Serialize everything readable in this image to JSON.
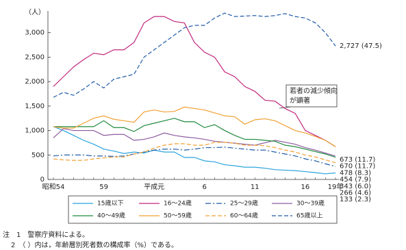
{
  "chart_data": {
    "type": "line",
    "y_unit_label": "（人）",
    "categories": [
      "昭和54",
      null,
      null,
      null,
      null,
      "59",
      null,
      null,
      null,
      null,
      "平成元",
      null,
      null,
      null,
      null,
      "6",
      null,
      null,
      null,
      null,
      "11",
      null,
      null,
      null,
      null,
      "16",
      null,
      null,
      "19年"
    ],
    "ylim": [
      0,
      3500
    ],
    "yticks": [
      0,
      500,
      {
        "value": 1000,
        "label": "1,000"
      },
      {
        "value": 1500,
        "label": "1,500"
      },
      {
        "value": 2000,
        "label": "2,000"
      },
      {
        "value": 2500,
        "label": "2,500"
      },
      {
        "value": 3000,
        "label": "3,000"
      }
    ],
    "series": [
      {
        "name": "15歳以下",
        "color": "#29a3dc",
        "style": "solid",
        "values": [
          1080,
          1000,
          900,
          800,
          720,
          620,
          580,
          530,
          560,
          540,
          600,
          560,
          560,
          450,
          450,
          380,
          360,
          300,
          280,
          250,
          250,
          230,
          200,
          190,
          180,
          160,
          140,
          115,
          133
        ],
        "value_labels": [
          null,
          null,
          null,
          null,
          null,
          null,
          null,
          null,
          null,
          null,
          null,
          null,
          null,
          null,
          null,
          null,
          null,
          null,
          null,
          null,
          null,
          null,
          null,
          null,
          null,
          null,
          null,
          null,
          "133 (2.3)"
        ]
      },
      {
        "name": "16～24歳",
        "color": "#c0267c",
        "style": "solid",
        "values": [
          1900,
          2100,
          2300,
          2450,
          2580,
          2550,
          2650,
          2650,
          2800,
          3200,
          3330,
          3330,
          3230,
          3200,
          2800,
          2600,
          2500,
          2200,
          2100,
          1900,
          1800,
          1620,
          1600,
          1450,
          1350,
          1000,
          900,
          800,
          670
        ],
        "value_labels": [
          null,
          null,
          null,
          null,
          null,
          null,
          null,
          null,
          null,
          null,
          null,
          null,
          null,
          null,
          null,
          null,
          null,
          null,
          null,
          null,
          null,
          null,
          null,
          null,
          null,
          null,
          null,
          null,
          "670 (11.7)"
        ]
      },
      {
        "name": "25～29歳",
        "color": "#1e5aa8",
        "style": "dashdot",
        "values": [
          480,
          500,
          500,
          500,
          480,
          480,
          470,
          480,
          520,
          560,
          600,
          620,
          620,
          600,
          620,
          650,
          650,
          660,
          640,
          620,
          600,
          600,
          560,
          520,
          480,
          420,
          380,
          320,
          266
        ],
        "value_labels": [
          null,
          null,
          null,
          null,
          null,
          null,
          null,
          null,
          null,
          null,
          null,
          null,
          null,
          null,
          null,
          null,
          null,
          null,
          null,
          null,
          null,
          null,
          null,
          null,
          null,
          null,
          null,
          null,
          "266 (4.6)"
        ]
      },
      {
        "name": "30～39歳",
        "color": "#8c5aa0",
        "style": "solid",
        "values": [
          850,
          1040,
          1000,
          1000,
          1000,
          900,
          920,
          920,
          800,
          820,
          870,
          950,
          900,
          870,
          850,
          820,
          780,
          760,
          740,
          720,
          700,
          750,
          800,
          760,
          720,
          650,
          600,
          540,
          478
        ],
        "value_labels": [
          null,
          null,
          null,
          null,
          null,
          null,
          null,
          null,
          null,
          null,
          null,
          null,
          null,
          null,
          null,
          null,
          null,
          null,
          null,
          null,
          null,
          null,
          null,
          null,
          null,
          null,
          null,
          null,
          "478 (8.3)"
        ]
      },
      {
        "name": "40～49歳",
        "color": "#1e8a3c",
        "style": "solid",
        "values": [
          1080,
          1080,
          1080,
          1080,
          1080,
          1200,
          1060,
          1060,
          980,
          1100,
          1150,
          1200,
          1250,
          1180,
          1180,
          1060,
          1120,
          1000,
          900,
          820,
          820,
          800,
          780,
          700,
          670,
          620,
          570,
          520,
          454
        ],
        "value_labels": [
          null,
          null,
          null,
          null,
          null,
          null,
          null,
          null,
          null,
          null,
          null,
          null,
          null,
          null,
          null,
          null,
          null,
          null,
          null,
          null,
          null,
          null,
          null,
          null,
          null,
          null,
          null,
          null,
          "454 (7.9)"
        ]
      },
      {
        "name": "50～59歳",
        "color": "#f0a030",
        "style": "solid",
        "values": [
          1080,
          1050,
          1050,
          1150,
          1250,
          1300,
          1230,
          1200,
          1170,
          1380,
          1420,
          1380,
          1390,
          1480,
          1450,
          1420,
          1360,
          1300,
          1280,
          1130,
          1220,
          1240,
          1200,
          1100,
          1000,
          950,
          880,
          800,
          673
        ],
        "value_labels": [
          null,
          null,
          null,
          null,
          null,
          null,
          null,
          null,
          null,
          null,
          null,
          null,
          null,
          null,
          null,
          null,
          null,
          null,
          null,
          null,
          null,
          null,
          null,
          null,
          null,
          null,
          null,
          null,
          "673 (11.7)"
        ]
      },
      {
        "name": "60～64歳",
        "color": "#f0a030",
        "style": "dashed",
        "values": [
          420,
          400,
          390,
          390,
          420,
          440,
          460,
          460,
          520,
          560,
          640,
          700,
          730,
          730,
          700,
          700,
          760,
          760,
          740,
          700,
          700,
          690,
          650,
          600,
          560,
          500,
          460,
          400,
          343
        ],
        "value_labels": [
          null,
          null,
          null,
          null,
          null,
          null,
          null,
          null,
          null,
          null,
          null,
          null,
          null,
          null,
          null,
          null,
          null,
          null,
          null,
          null,
          null,
          null,
          null,
          null,
          null,
          null,
          null,
          null,
          "343 (6.0)"
        ]
      },
      {
        "name": "65歳以上",
        "color": "#1e5aa8",
        "style": "dashed",
        "values": [
          1680,
          1780,
          1720,
          1850,
          2000,
          1870,
          2050,
          2100,
          2150,
          2500,
          2650,
          2800,
          2950,
          3100,
          3150,
          3150,
          3300,
          3400,
          3330,
          3340,
          3350,
          3330,
          3350,
          3390,
          3330,
          3300,
          3200,
          3000,
          2727
        ],
        "value_labels": [
          null,
          null,
          null,
          null,
          null,
          null,
          null,
          null,
          null,
          null,
          null,
          null,
          null,
          null,
          null,
          null,
          null,
          null,
          null,
          null,
          null,
          null,
          null,
          null,
          null,
          null,
          null,
          null,
          "2,727 (47.5)"
        ]
      }
    ],
    "annotation": [
      "若者の減少傾向",
      "が顕著"
    ],
    "notes": [
      "注　1　警察庁資料による。",
      "2　（ ）内は，年齢層別死者数の構成率（%）である。"
    ]
  }
}
